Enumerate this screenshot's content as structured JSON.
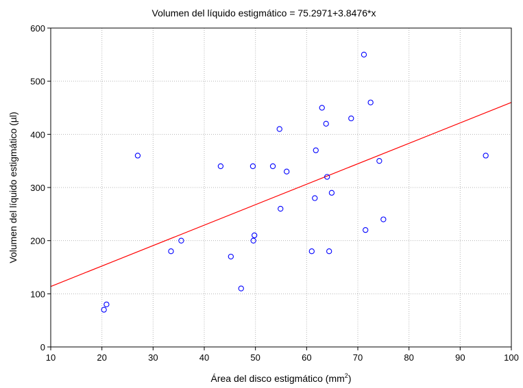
{
  "chart_data": {
    "type": "scatter",
    "title": "Volumen del líquido estigmático = 75.2971+3.8476*x",
    "xlabel": "Área del disco estigmático (mm",
    "xlabel_superscript": "2",
    "xlabel_suffix": ")",
    "ylabel": "Volumen del líquido estigmático (µl)",
    "xlim": [
      10,
      100
    ],
    "ylim": [
      0,
      600
    ],
    "xticks": [
      "10",
      "20",
      "30",
      "40",
      "50",
      "60",
      "70",
      "80",
      "90",
      "100"
    ],
    "yticks": [
      "0",
      "100",
      "200",
      "300",
      "400",
      "500",
      "600"
    ],
    "grid": true,
    "points": [
      {
        "x": 20.4,
        "y": 70
      },
      {
        "x": 20.9,
        "y": 80
      },
      {
        "x": 27.0,
        "y": 360
      },
      {
        "x": 33.5,
        "y": 180
      },
      {
        "x": 35.5,
        "y": 200
      },
      {
        "x": 43.2,
        "y": 340
      },
      {
        "x": 45.2,
        "y": 170
      },
      {
        "x": 47.2,
        "y": 110
      },
      {
        "x": 49.5,
        "y": 340
      },
      {
        "x": 49.6,
        "y": 200
      },
      {
        "x": 49.8,
        "y": 210
      },
      {
        "x": 53.4,
        "y": 340
      },
      {
        "x": 54.7,
        "y": 410
      },
      {
        "x": 54.9,
        "y": 260
      },
      {
        "x": 56.1,
        "y": 330
      },
      {
        "x": 61.0,
        "y": 180
      },
      {
        "x": 61.6,
        "y": 280
      },
      {
        "x": 61.8,
        "y": 370
      },
      {
        "x": 63.0,
        "y": 450
      },
      {
        "x": 63.8,
        "y": 420
      },
      {
        "x": 64.0,
        "y": 320
      },
      {
        "x": 64.4,
        "y": 180
      },
      {
        "x": 64.9,
        "y": 290
      },
      {
        "x": 68.7,
        "y": 430
      },
      {
        "x": 71.2,
        "y": 550
      },
      {
        "x": 71.5,
        "y": 220
      },
      {
        "x": 72.5,
        "y": 460
      },
      {
        "x": 74.2,
        "y": 350
      },
      {
        "x": 75.0,
        "y": 240
      },
      {
        "x": 95.0,
        "y": 360
      }
    ],
    "fit_line": {
      "intercept": 75.2971,
      "slope": 3.8476,
      "color": "#ff0000"
    },
    "marker_color": "#0000ff"
  }
}
